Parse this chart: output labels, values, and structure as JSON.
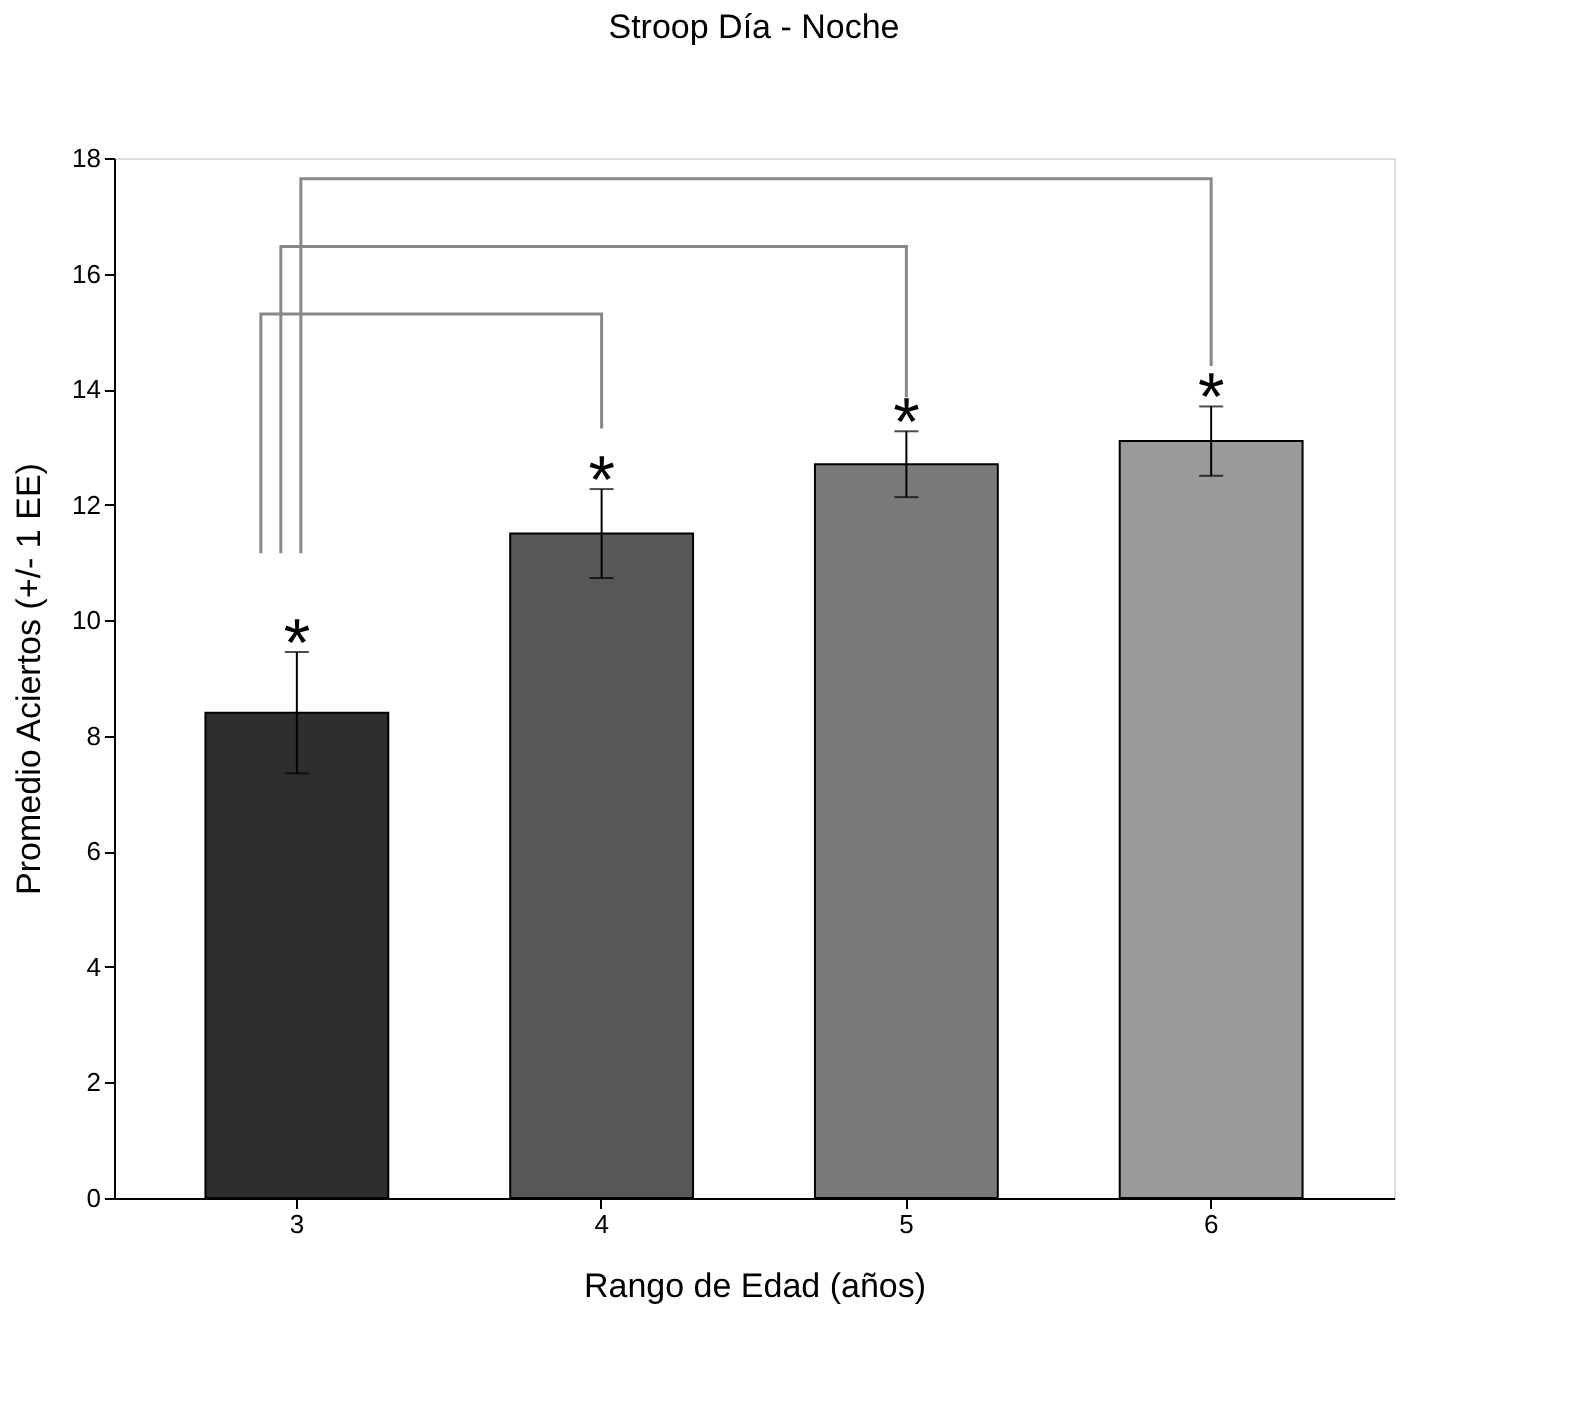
{
  "chart_data": {
    "type": "bar",
    "title": "Stroop Día - Noche",
    "xlabel": "Rango de Edad (años)",
    "ylabel": "Promedio Aciertos (+/- 1 EE)",
    "categories": [
      "3",
      "4",
      "5",
      "6"
    ],
    "values": [
      8.4,
      11.5,
      12.7,
      13.1
    ],
    "colors": [
      "#2e2e2e",
      "#575757",
      "#7a7a7a",
      "#9a9a9a"
    ],
    "errors": [
      1.05,
      0.77,
      0.57,
      0.6
    ],
    "ylim": [
      0,
      18
    ],
    "yticks": [
      0,
      2,
      4,
      6,
      8,
      10,
      12,
      14,
      16,
      18
    ],
    "grid": false,
    "annotations": [
      "*",
      "*",
      "*",
      "*"
    ]
  }
}
